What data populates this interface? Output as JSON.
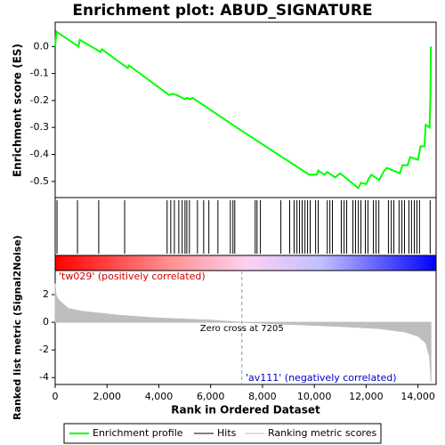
{
  "chart_data": {
    "type": "gsea",
    "title": "Enrichment plot: ABUD_SIGNATURE",
    "y_label": "Enrichment score (ES)",
    "x_label": "Rank in Ordered Dataset",
    "xlim": [
      0,
      14700
    ],
    "xticks": [
      0,
      {
        "value": 2000,
        "label": "2,000"
      },
      {
        "value": 4000,
        "label": "4,000"
      },
      {
        "value": 6000,
        "label": "6,000"
      },
      {
        "value": 8000,
        "label": "8,000"
      },
      {
        "value": 10000,
        "label": "10,000"
      },
      {
        "value": 12000,
        "label": "12,000"
      },
      {
        "value": 14000,
        "label": "14,000"
      }
    ],
    "ylim": [
      -0.56,
      0.09
    ],
    "yticks": [
      {
        "value": 0,
        "label": "0.0"
      },
      -0.1,
      -0.2,
      -0.3,
      -0.4,
      -0.5
    ],
    "series": [
      {
        "name": "Enrichment profile",
        "color": "#00ff00",
        "x": [
          0,
          50,
          900,
          950,
          1750,
          1800,
          2800,
          2850,
          4400,
          4500,
          4700,
          5000,
          5100,
          5200,
          5300,
          7000,
          9800,
          10100,
          10150,
          10400,
          10500,
          10800,
          11000,
          11700,
          11800,
          12000,
          12100,
          12200,
          12500,
          12700,
          12800,
          13300,
          13400,
          13600,
          13700,
          14000,
          14100,
          14250,
          14300,
          14450,
          14480,
          14500
        ],
        "values": [
          0,
          0.055,
          0.0,
          0.025,
          -0.02,
          -0.01,
          -0.08,
          -0.07,
          -0.18,
          -0.175,
          -0.18,
          -0.195,
          -0.19,
          -0.195,
          -0.19,
          -0.3,
          -0.475,
          -0.475,
          -0.46,
          -0.475,
          -0.465,
          -0.485,
          -0.47,
          -0.525,
          -0.505,
          -0.51,
          -0.49,
          -0.475,
          -0.495,
          -0.46,
          -0.45,
          -0.47,
          -0.44,
          -0.44,
          -0.41,
          -0.42,
          -0.37,
          -0.37,
          -0.29,
          -0.3,
          -0.18,
          0.0
        ]
      }
    ],
    "hits": {
      "name": "Hits",
      "color": "#000000",
      "x": [
        70,
        860,
        1680,
        2680,
        4320,
        4460,
        4600,
        4770,
        4900,
        5010,
        5080,
        5180,
        5490,
        5730,
        5930,
        6280,
        6760,
        6860,
        6930,
        7720,
        7790,
        7920,
        8710,
        9050,
        9220,
        9330,
        9430,
        9530,
        9640,
        9740,
        9840,
        10050,
        10150,
        10500,
        10600,
        10700,
        11040,
        11150,
        11250,
        11490,
        11590,
        11700,
        11800,
        11970,
        12070,
        12280,
        12380,
        12490,
        12860,
        12970,
        13070,
        13270,
        13380,
        13480,
        13650,
        13750,
        13860,
        13960,
        14060,
        14470
      ]
    },
    "metric": {
      "name": "Ranking metric scores",
      "color": "#bebebe",
      "y_label": "Ranked list metric (Signal2Noise)",
      "ylim": [
        -4.5,
        3.74
      ],
      "yticks": [
        2,
        0,
        -2,
        -4
      ],
      "x": [
        0,
        30,
        100,
        200,
        500,
        1000,
        1500,
        2500,
        4000,
        6000,
        7205,
        9000,
        11000,
        12500,
        13500,
        14000,
        14300,
        14450,
        14500
      ],
      "values": [
        2.8,
        2.0,
        1.7,
        1.5,
        1.0,
        0.8,
        0.7,
        0.5,
        0.3,
        0.15,
        0,
        -0.15,
        -0.3,
        -0.45,
        -0.7,
        -1.0,
        -1.5,
        -2.5,
        -4.3
      ]
    },
    "pos_label": "'tw029' (positively correlated)",
    "neg_label": "'av111' (negatively correlated)",
    "zero_cross": 7205,
    "zero_cross_label": "Zero cross at 7205"
  }
}
